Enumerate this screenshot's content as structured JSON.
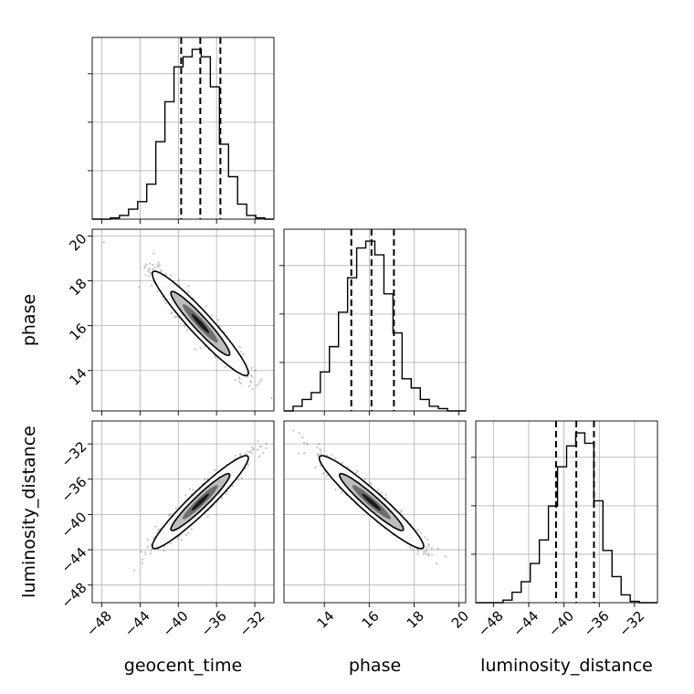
{
  "chart_data": {
    "type": "corner",
    "parameters": [
      "geocent_time",
      "phase",
      "luminosity_distance"
    ],
    "labels": [
      "geocent_time",
      "phase",
      "luminosity_distance"
    ],
    "ranges": {
      "geocent_time": [
        -49,
        -30
      ],
      "phase": [
        12.2,
        20.3
      ],
      "luminosity_distance": [
        -50,
        -29.4
      ]
    },
    "ticks": {
      "geocent_time": [
        -48,
        -44,
        -40,
        -36,
        -32
      ],
      "phase": [
        14,
        16,
        18,
        20
      ],
      "luminosity_distance": [
        -48,
        -44,
        -40,
        -36,
        -32
      ]
    },
    "tick_labels": {
      "geocent_time": [
        "−48",
        "−44",
        "−40",
        "−36",
        "−32"
      ],
      "phase": [
        "14",
        "16",
        "18",
        "20"
      ],
      "luminosity_distance": [
        "−48",
        "−44",
        "−40",
        "−36",
        "−32"
      ]
    },
    "quantiles": {
      "geocent_time": [
        -39.7,
        -37.7,
        -35.6
      ],
      "phase": [
        15.2,
        16.1,
        17.1
      ],
      "luminosity_distance": [
        -40.9,
        -38.6,
        -36.6
      ]
    },
    "histograms": {
      "geocent_time": {
        "edges": [
          -49,
          -48.05,
          -47.1,
          -46.15,
          -45.2,
          -44.25,
          -43.3,
          -42.35,
          -41.4,
          -40.45,
          -39.5,
          -38.55,
          -37.6,
          -36.65,
          -35.7,
          -34.75,
          -33.8,
          -32.85,
          -31.9,
          -30.95,
          -30
        ],
        "counts": [
          0,
          0,
          0.5,
          1.5,
          4,
          7,
          14,
          31,
          47,
          61,
          65,
          68,
          65,
          53,
          30,
          17,
          6,
          1.5,
          0.5,
          0
        ]
      },
      "phase": {
        "edges": [
          12.2,
          12.605,
          13.01,
          13.415,
          13.82,
          14.225,
          14.63,
          15.035,
          15.44,
          15.845,
          16.25,
          16.655,
          17.06,
          17.465,
          17.87,
          18.275,
          18.68,
          19.085,
          19.49,
          19.895,
          20.3
        ],
        "counts": [
          0,
          2,
          5,
          8,
          17,
          28,
          43,
          58,
          71,
          74,
          68,
          51,
          34,
          14,
          10,
          5,
          2,
          1,
          0,
          0
        ]
      },
      "luminosity_distance": {
        "edges": [
          -50,
          -48.97,
          -47.94,
          -46.91,
          -45.88,
          -44.85,
          -43.82,
          -42.79,
          -41.76,
          -40.73,
          -39.7,
          -38.67,
          -37.64,
          -36.61,
          -35.58,
          -34.55,
          -33.52,
          -32.49,
          -31.46,
          -30.43,
          -29.4
        ],
        "counts": [
          0,
          0,
          0,
          1,
          4,
          8,
          15,
          24,
          37,
          52,
          60,
          65,
          61,
          39,
          20,
          10,
          3,
          0.5,
          0,
          0
        ]
      }
    },
    "correlations": {
      "phase_vs_geocent_time": -0.95,
      "luminosity_distance_vs_geocent_time": 0.95,
      "luminosity_distance_vs_phase": -0.95
    },
    "grid": true
  }
}
